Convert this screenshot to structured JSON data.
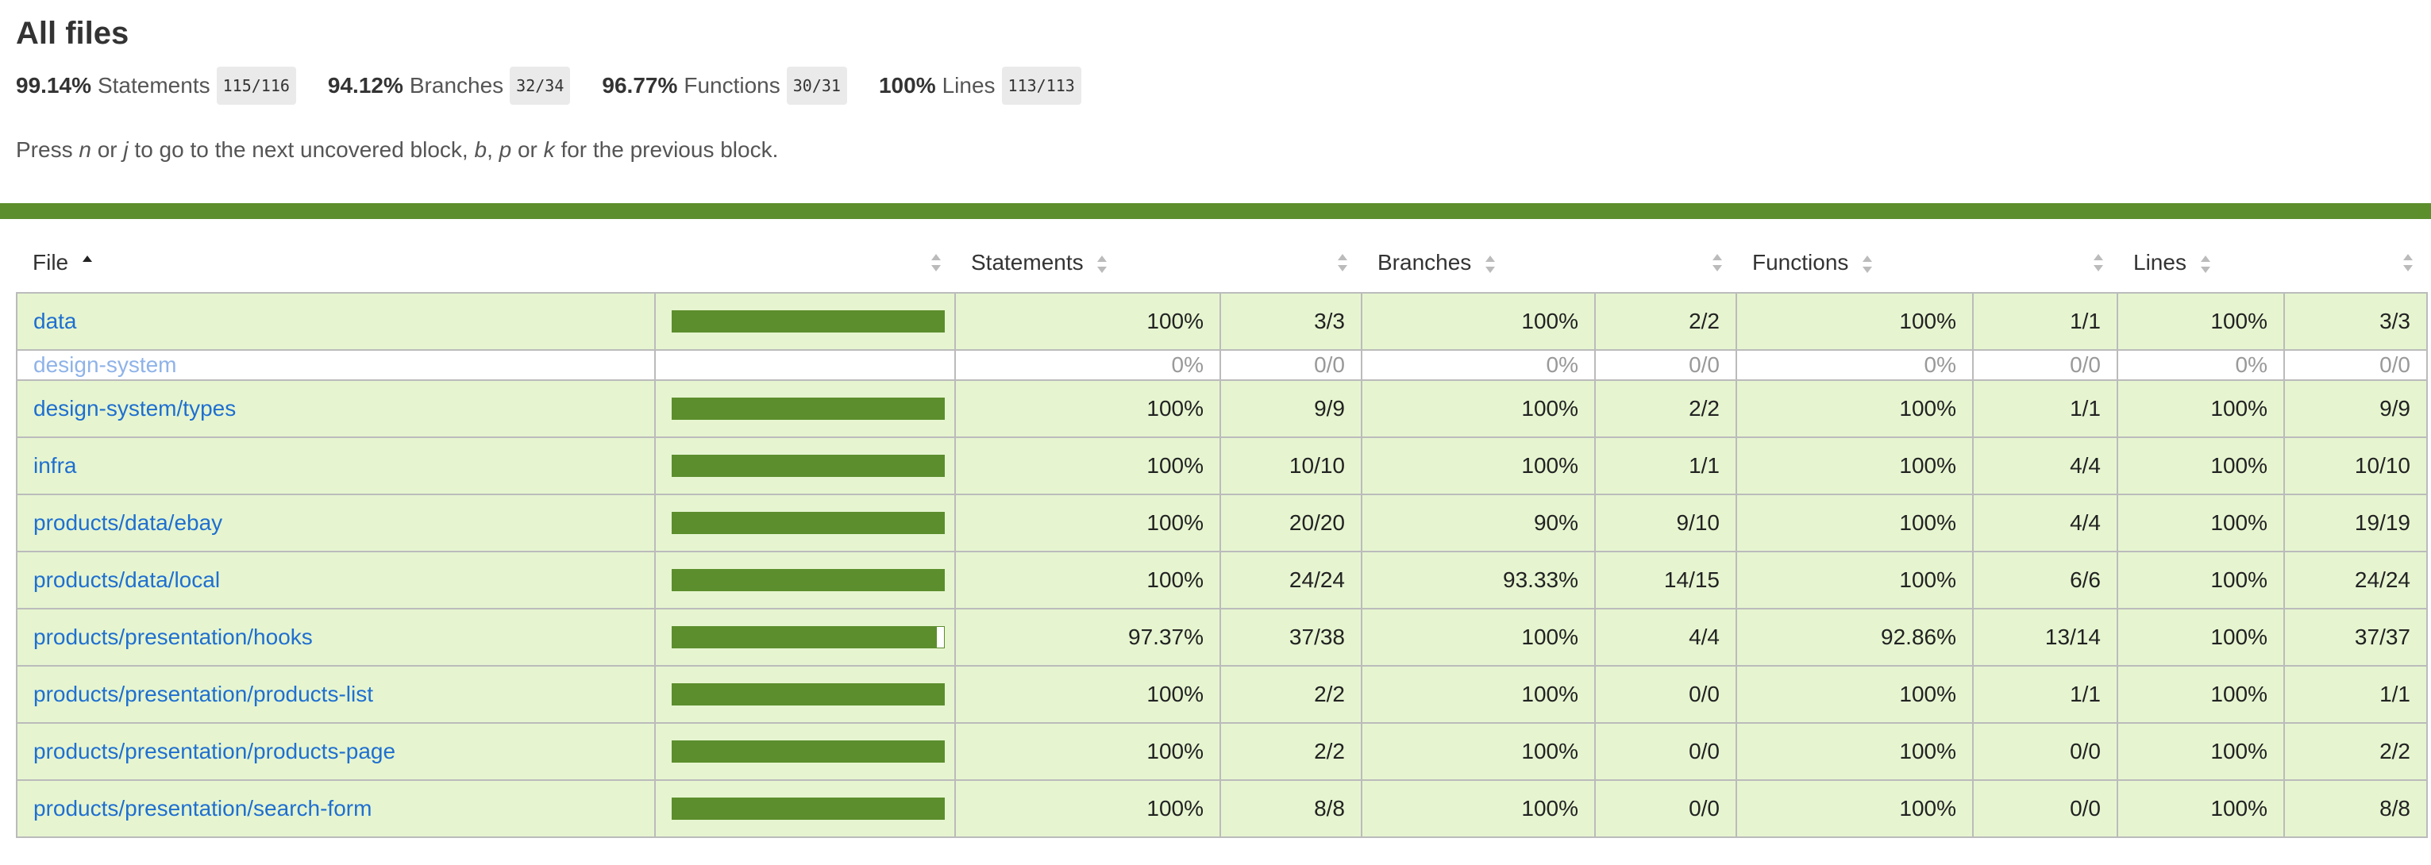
{
  "page": {
    "title": "All files"
  },
  "summary": [
    {
      "pct": "99.14%",
      "label": "Statements",
      "fraction": "115/116"
    },
    {
      "pct": "94.12%",
      "label": "Branches",
      "fraction": "32/34"
    },
    {
      "pct": "96.77%",
      "label": "Functions",
      "fraction": "30/31"
    },
    {
      "pct": "100%",
      "label": "Lines",
      "fraction": "113/113"
    }
  ],
  "hint": {
    "p1": "Press ",
    "k1": "n",
    "p2": " or ",
    "k2": "j",
    "p3": " to go to the next uncovered block, ",
    "k3": "b",
    "p4": ", ",
    "k4": "p",
    "p5": " or ",
    "k5": "k",
    "p6": " for the previous block."
  },
  "headers": {
    "file": "File",
    "statements": "Statements",
    "branches": "Branches",
    "functions": "Functions",
    "lines": "Lines"
  },
  "colors": {
    "high_bg": "#e6f5d0",
    "bar": "#5c8e2d",
    "link": "#1f6fd0"
  },
  "rows": [
    {
      "file": "data",
      "coverage": 100,
      "stmt_pct": "100%",
      "stmt": "3/3",
      "br_pct": "100%",
      "br": "2/2",
      "fn_pct": "100%",
      "fn": "1/1",
      "ln_pct": "100%",
      "ln": "3/3",
      "empty": false
    },
    {
      "file": "design-system",
      "coverage": 0,
      "stmt_pct": "0%",
      "stmt": "0/0",
      "br_pct": "0%",
      "br": "0/0",
      "fn_pct": "0%",
      "fn": "0/0",
      "ln_pct": "0%",
      "ln": "0/0",
      "empty": true
    },
    {
      "file": "design-system/types",
      "coverage": 100,
      "stmt_pct": "100%",
      "stmt": "9/9",
      "br_pct": "100%",
      "br": "2/2",
      "fn_pct": "100%",
      "fn": "1/1",
      "ln_pct": "100%",
      "ln": "9/9",
      "empty": false
    },
    {
      "file": "infra",
      "coverage": 100,
      "stmt_pct": "100%",
      "stmt": "10/10",
      "br_pct": "100%",
      "br": "1/1",
      "fn_pct": "100%",
      "fn": "4/4",
      "ln_pct": "100%",
      "ln": "10/10",
      "empty": false
    },
    {
      "file": "products/data/ebay",
      "coverage": 100,
      "stmt_pct": "100%",
      "stmt": "20/20",
      "br_pct": "90%",
      "br": "9/10",
      "fn_pct": "100%",
      "fn": "4/4",
      "ln_pct": "100%",
      "ln": "19/19",
      "empty": false
    },
    {
      "file": "products/data/local",
      "coverage": 100,
      "stmt_pct": "100%",
      "stmt": "24/24",
      "br_pct": "93.33%",
      "br": "14/15",
      "fn_pct": "100%",
      "fn": "6/6",
      "ln_pct": "100%",
      "ln": "24/24",
      "empty": false
    },
    {
      "file": "products/presentation/hooks",
      "coverage": 97.37,
      "stmt_pct": "97.37%",
      "stmt": "37/38",
      "br_pct": "100%",
      "br": "4/4",
      "fn_pct": "92.86%",
      "fn": "13/14",
      "ln_pct": "100%",
      "ln": "37/37",
      "empty": false
    },
    {
      "file": "products/presentation/products-list",
      "coverage": 100,
      "stmt_pct": "100%",
      "stmt": "2/2",
      "br_pct": "100%",
      "br": "0/0",
      "fn_pct": "100%",
      "fn": "1/1",
      "ln_pct": "100%",
      "ln": "1/1",
      "empty": false
    },
    {
      "file": "products/presentation/products-page",
      "coverage": 100,
      "stmt_pct": "100%",
      "stmt": "2/2",
      "br_pct": "100%",
      "br": "0/0",
      "fn_pct": "100%",
      "fn": "0/0",
      "ln_pct": "100%",
      "ln": "2/2",
      "empty": false
    },
    {
      "file": "products/presentation/search-form",
      "coverage": 100,
      "stmt_pct": "100%",
      "stmt": "8/8",
      "br_pct": "100%",
      "br": "0/0",
      "fn_pct": "100%",
      "fn": "0/0",
      "ln_pct": "100%",
      "ln": "8/8",
      "empty": false
    }
  ]
}
